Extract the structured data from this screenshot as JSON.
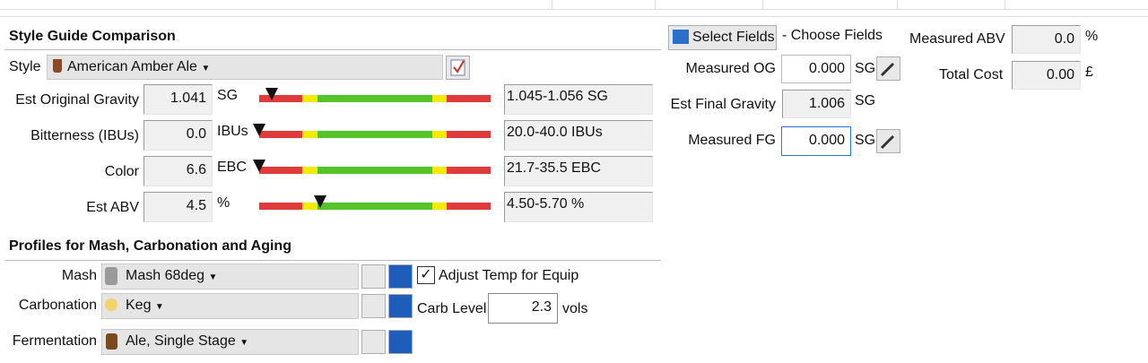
{
  "style_guide": {
    "title": "Style Guide Comparison",
    "style_label": "Style",
    "style": "American Amber Ale",
    "rows": [
      {
        "label": "Est Original Gravity",
        "value": "1.041",
        "unit": "SG",
        "range": "1.045-1.056 SG"
      },
      {
        "label": "Bitterness (IBUs)",
        "value": "0.0",
        "unit": "IBUs",
        "range": "20.0-40.0 IBUs"
      },
      {
        "label": "Color",
        "value": "6.6",
        "unit": "EBC",
        "range": "21.7-35.5 EBC"
      },
      {
        "label": "Est ABV",
        "value": "4.5",
        "unit": "%",
        "range": "4.50-5.70 %"
      }
    ]
  },
  "fields": {
    "select_button": "Select Fields",
    "choose": "- Choose Fields",
    "measured_og": {
      "label": "Measured OG",
      "value": "0.000",
      "unit": "SG"
    },
    "est_fg": {
      "label": "Est Final Gravity",
      "value": "1.006",
      "unit": "SG"
    },
    "measured_fg": {
      "label": "Measured FG",
      "value": "0.000",
      "unit": "SG"
    },
    "measured_abv": {
      "label": "Measured ABV",
      "value": "0.0",
      "unit": "%"
    },
    "total_cost": {
      "label": "Total Cost",
      "value": "0.00",
      "unit": "£"
    }
  },
  "profiles": {
    "title": "Profiles for Mash, Carbonation and Aging",
    "mash": {
      "label": "Mash",
      "value": "Mash 68deg",
      "checkbox": "Adjust Temp for Equip"
    },
    "carbonation": {
      "label": "Carbonation",
      "value": "Keg",
      "carb_label": "Carb Level",
      "carb_value": "2.3",
      "carb_unit": "vols"
    },
    "fermentation": {
      "label": "Fermentation",
      "value": "Ale, Single Stage"
    }
  }
}
